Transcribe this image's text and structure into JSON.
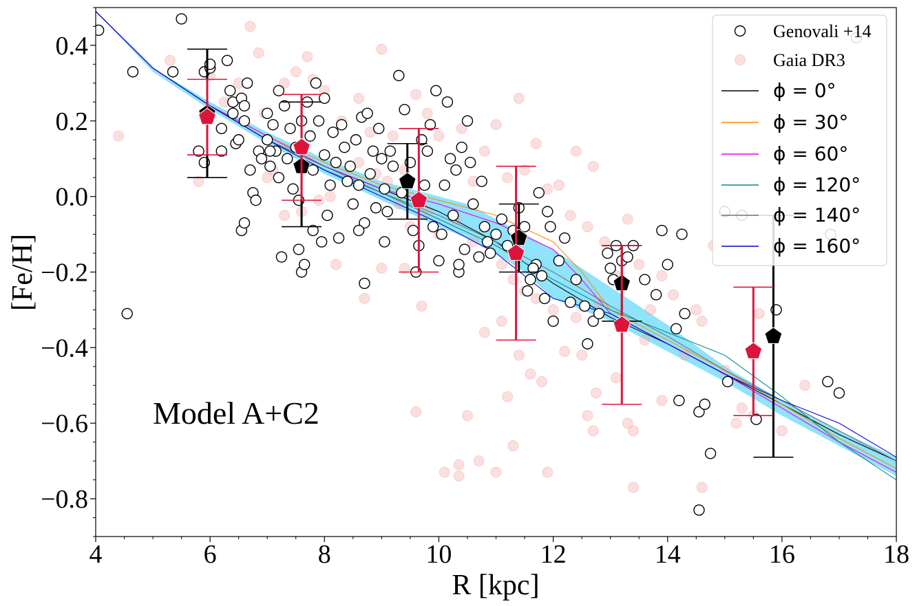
{
  "chart_data": {
    "type": "scatter",
    "xlabel": "R [kpc]",
    "ylabel": "[Fe/H]",
    "xlim": [
      4,
      18
    ],
    "ylim": [
      -0.9,
      0.5
    ],
    "xticks": [
      4,
      6,
      8,
      10,
      12,
      14,
      16,
      18
    ],
    "xtick_labels": [
      "4",
      "6",
      "8",
      "10",
      "12",
      "14",
      "16",
      "18"
    ],
    "yticks": [
      -0.8,
      -0.6,
      -0.4,
      -0.2,
      0.0,
      0.2,
      0.4
    ],
    "ytick_labels": [
      "−0.8",
      "−0.6",
      "−0.4",
      "−0.2",
      "0.0",
      "0.2",
      "0.4"
    ],
    "annotation": "Model A+C2",
    "legend_position": "top-right",
    "colors": {
      "gaia": "#f4a3a3",
      "gaia_bin": "#dc143c",
      "genovali_bin": "#000000",
      "band": "#33ccf5",
      "phi0": "#000000",
      "phi30": "#ff8c00",
      "phi60": "#ee00ee",
      "phi120": "#008b8b",
      "phi140": "#707070",
      "phi160": "#0000dd"
    },
    "legend": [
      {
        "key": "genovali",
        "label": "Genovali +14"
      },
      {
        "key": "gaia",
        "label": "Gaia DR3"
      },
      {
        "key": "phi0",
        "label": "ϕ = 0°"
      },
      {
        "key": "phi30",
        "label": "ϕ = 30°"
      },
      {
        "key": "phi60",
        "label": "ϕ = 60°"
      },
      {
        "key": "phi120",
        "label": "ϕ = 120°"
      },
      {
        "key": "phi140",
        "label": "ϕ = 140°"
      },
      {
        "key": "phi160",
        "label": "ϕ = 160°"
      }
    ],
    "genovali_binned": [
      {
        "x": 5.95,
        "y": 0.22,
        "err_lo": 0.05,
        "err_hi": 0.39
      },
      {
        "x": 7.6,
        "y": 0.08,
        "err_lo": -0.08,
        "err_hi": 0.25
      },
      {
        "x": 9.45,
        "y": 0.04,
        "err_lo": -0.06,
        "err_hi": 0.14
      },
      {
        "x": 11.4,
        "y": -0.11,
        "err_lo": -0.2,
        "err_hi": -0.02
      },
      {
        "x": 13.2,
        "y": -0.23,
        "err_lo": -0.33,
        "err_hi": -0.13
      },
      {
        "x": 15.85,
        "y": -0.37,
        "err_lo": -0.69,
        "err_hi": -0.05
      }
    ],
    "gaia_binned": [
      {
        "x": 5.95,
        "y": 0.21,
        "err_lo": 0.11,
        "err_hi": 0.31
      },
      {
        "x": 7.6,
        "y": 0.13,
        "err_lo": -0.01,
        "err_hi": 0.27
      },
      {
        "x": 9.65,
        "y": -0.01,
        "err_lo": -0.2,
        "err_hi": 0.18
      },
      {
        "x": 11.35,
        "y": -0.15,
        "err_lo": -0.38,
        "err_hi": 0.08
      },
      {
        "x": 13.2,
        "y": -0.34,
        "err_lo": -0.55,
        "err_hi": -0.13
      },
      {
        "x": 15.5,
        "y": -0.41,
        "err_lo": -0.58,
        "err_hi": -0.24
      }
    ],
    "band": {
      "x": [
        4,
        5,
        6,
        7,
        8,
        9,
        10,
        10.5,
        11,
        11.5,
        12,
        13,
        14,
        15,
        16,
        17,
        18
      ],
      "upper": [
        0.49,
        0.34,
        0.25,
        0.17,
        0.1,
        0.04,
        0.0,
        -0.02,
        -0.06,
        -0.1,
        -0.14,
        -0.24,
        -0.34,
        -0.45,
        -0.54,
        -0.62,
        -0.69
      ],
      "lower": [
        0.49,
        0.33,
        0.23,
        0.14,
        0.06,
        -0.01,
        -0.08,
        -0.11,
        -0.15,
        -0.2,
        -0.27,
        -0.33,
        -0.41,
        -0.49,
        -0.58,
        -0.66,
        -0.74
      ]
    },
    "series": [
      {
        "name": "phi0",
        "x": [
          4,
          5,
          6,
          7,
          8,
          9,
          10,
          11,
          12,
          13,
          14,
          15,
          16,
          17,
          18
        ],
        "y": [
          0.49,
          0.34,
          0.24,
          0.15,
          0.08,
          0.02,
          -0.04,
          -0.12,
          -0.23,
          -0.32,
          -0.39,
          -0.47,
          -0.55,
          -0.63,
          -0.7
        ]
      },
      {
        "name": "phi30",
        "x": [
          4,
          5,
          6,
          7,
          8,
          9,
          10,
          11,
          12,
          12.5,
          13,
          14,
          15,
          16,
          17,
          18
        ],
        "y": [
          0.49,
          0.34,
          0.24,
          0.16,
          0.09,
          0.03,
          -0.01,
          -0.05,
          -0.12,
          -0.2,
          -0.3,
          -0.38,
          -0.46,
          -0.55,
          -0.64,
          -0.72
        ]
      },
      {
        "name": "phi60",
        "x": [
          4,
          5,
          6,
          7,
          8,
          9,
          10,
          11,
          12,
          12.5,
          13,
          14,
          15,
          16,
          17,
          18
        ],
        "y": [
          0.49,
          0.34,
          0.24,
          0.16,
          0.08,
          0.02,
          -0.02,
          -0.07,
          -0.14,
          -0.22,
          -0.31,
          -0.39,
          -0.47,
          -0.56,
          -0.65,
          -0.73
        ]
      },
      {
        "name": "phi120",
        "x": [
          4,
          5,
          6,
          7,
          8,
          9,
          10,
          11,
          12,
          13,
          14,
          15,
          16,
          17,
          18
        ],
        "y": [
          0.49,
          0.34,
          0.24,
          0.15,
          0.07,
          0.01,
          -0.06,
          -0.13,
          -0.22,
          -0.3,
          -0.36,
          -0.42,
          -0.53,
          -0.65,
          -0.75
        ]
      },
      {
        "name": "phi140",
        "x": [
          4,
          5,
          6,
          7,
          8,
          9,
          10,
          11,
          12,
          13,
          14,
          15,
          16,
          17,
          18
        ],
        "y": [
          0.49,
          0.34,
          0.24,
          0.15,
          0.08,
          0.01,
          -0.05,
          -0.12,
          -0.2,
          -0.29,
          -0.37,
          -0.46,
          -0.54,
          -0.62,
          -0.7
        ]
      },
      {
        "name": "phi160",
        "x": [
          4,
          5,
          6,
          7,
          8,
          9,
          10,
          11,
          12,
          13,
          14,
          15,
          16,
          17,
          18
        ],
        "y": [
          0.49,
          0.34,
          0.24,
          0.15,
          0.07,
          0.0,
          -0.07,
          -0.15,
          -0.27,
          -0.31,
          -0.39,
          -0.47,
          -0.54,
          -0.6,
          -0.69
        ]
      }
    ],
    "genovali_points": [
      [
        4.05,
        0.44
      ],
      [
        4.65,
        0.33
      ],
      [
        5.35,
        0.33
      ],
      [
        5.5,
        0.47
      ],
      [
        5.8,
        0.12
      ],
      [
        5.9,
        0.33
      ],
      [
        6.0,
        0.34
      ],
      [
        6.0,
        0.35
      ],
      [
        6.2,
        0.18
      ],
      [
        6.2,
        0.12
      ],
      [
        6.3,
        0.36
      ],
      [
        6.35,
        0.28
      ],
      [
        6.4,
        0.25
      ],
      [
        6.4,
        0.22
      ],
      [
        6.45,
        0.14
      ],
      [
        6.5,
        0.15
      ],
      [
        6.55,
        0.26
      ],
      [
        6.6,
        0.24
      ],
      [
        6.6,
        0.2
      ],
      [
        6.65,
        0.3
      ],
      [
        6.7,
        0.07
      ],
      [
        6.75,
        0.01
      ],
      [
        6.8,
        -0.01
      ],
      [
        6.85,
        0.12
      ],
      [
        6.9,
        0.1
      ],
      [
        7.0,
        0.15
      ],
      [
        7.0,
        0.22
      ],
      [
        7.05,
        0.08
      ],
      [
        7.1,
        0.19
      ],
      [
        7.15,
        0.12
      ],
      [
        7.2,
        0.28
      ],
      [
        7.2,
        0.05
      ],
      [
        7.25,
        -0.16
      ],
      [
        7.3,
        0.24
      ],
      [
        7.35,
        0.1
      ],
      [
        7.4,
        0.18
      ],
      [
        7.45,
        0.02
      ],
      [
        7.5,
        0.13
      ],
      [
        7.55,
        -0.01
      ],
      [
        7.6,
        0.2
      ],
      [
        7.6,
        -0.2
      ],
      [
        7.65,
        -0.18
      ],
      [
        7.7,
        0.25
      ],
      [
        7.75,
        0.16
      ],
      [
        7.8,
        0.07
      ],
      [
        7.8,
        -0.09
      ],
      [
        7.85,
        0.3
      ],
      [
        7.9,
        0.2
      ],
      [
        7.95,
        -0.12
      ],
      [
        8.0,
        0.26
      ],
      [
        8.0,
        0.11
      ],
      [
        8.05,
        -0.05
      ],
      [
        8.1,
        0.03
      ],
      [
        8.15,
        0.17
      ],
      [
        8.2,
        0.09
      ],
      [
        8.25,
        -0.11
      ],
      [
        8.3,
        0.19
      ],
      [
        8.35,
        0.13
      ],
      [
        8.4,
        0.04
      ],
      [
        8.45,
        0.08
      ],
      [
        8.5,
        -0.02
      ],
      [
        8.55,
        0.15
      ],
      [
        8.6,
        0.03
      ],
      [
        8.65,
        0.21
      ],
      [
        8.7,
        -0.07
      ],
      [
        8.75,
        0.22
      ],
      [
        8.8,
        0.06
      ],
      [
        8.85,
        0.12
      ],
      [
        8.9,
        -0.03
      ],
      [
        8.95,
        0.18
      ],
      [
        9.0,
        0.1
      ],
      [
        9.05,
        0.02
      ],
      [
        9.1,
        -0.04
      ],
      [
        9.15,
        0.12
      ],
      [
        9.2,
        0.08
      ],
      [
        9.3,
        0.32
      ],
      [
        9.35,
        0.01
      ],
      [
        9.4,
        0.23
      ],
      [
        9.5,
        0.09
      ],
      [
        9.55,
        -0.09
      ],
      [
        9.6,
        -0.2
      ],
      [
        9.65,
        -0.13
      ],
      [
        9.7,
        0.15
      ],
      [
        9.75,
        0.03
      ],
      [
        9.8,
        0.12
      ],
      [
        9.85,
        0.19
      ],
      [
        9.9,
        -0.08
      ],
      [
        9.95,
        0.28
      ],
      [
        10.0,
        -0.17
      ],
      [
        10.05,
        -0.1
      ],
      [
        10.1,
        0.03
      ],
      [
        10.15,
        0.25
      ],
      [
        10.2,
        0.1
      ],
      [
        10.25,
        -0.05
      ],
      [
        10.3,
        0.07
      ],
      [
        10.35,
        -0.2
      ],
      [
        10.4,
        0.13
      ],
      [
        10.45,
        -0.14
      ],
      [
        10.5,
        0.2
      ],
      [
        10.55,
        0.09
      ],
      [
        10.6,
        -0.02
      ],
      [
        10.7,
        -0.16
      ],
      [
        10.75,
        0.04
      ],
      [
        10.8,
        -0.08
      ],
      [
        10.85,
        -0.12
      ],
      [
        10.9,
        -0.15
      ],
      [
        11.0,
        -0.1
      ],
      [
        11.1,
        -0.06
      ],
      [
        11.2,
        -0.13
      ],
      [
        11.3,
        -0.09
      ],
      [
        11.4,
        -0.03
      ],
      [
        11.5,
        -0.08
      ],
      [
        11.55,
        -0.25
      ],
      [
        11.6,
        -0.22
      ],
      [
        11.7,
        -0.18
      ],
      [
        11.75,
        0.01
      ],
      [
        11.8,
        -0.21
      ],
      [
        11.85,
        -0.27
      ],
      [
        11.9,
        -0.04
      ],
      [
        11.95,
        -0.08
      ],
      [
        12.0,
        -0.33
      ],
      [
        12.1,
        -0.17
      ],
      [
        12.2,
        -0.11
      ],
      [
        12.3,
        -0.28
      ],
      [
        12.4,
        -0.22
      ],
      [
        12.55,
        -0.29
      ],
      [
        12.6,
        -0.39
      ],
      [
        12.7,
        -0.33
      ],
      [
        12.8,
        -0.31
      ],
      [
        12.95,
        -0.15
      ],
      [
        13.0,
        -0.19
      ],
      [
        13.05,
        -0.22
      ],
      [
        13.1,
        -0.13
      ],
      [
        13.2,
        -0.17
      ],
      [
        13.3,
        -0.16
      ],
      [
        13.4,
        -0.13
      ],
      [
        13.6,
        -0.22
      ],
      [
        13.8,
        -0.26
      ],
      [
        13.9,
        -0.09
      ],
      [
        14.0,
        -0.18
      ],
      [
        14.15,
        -0.35
      ],
      [
        14.2,
        -0.54
      ],
      [
        14.25,
        -0.1
      ],
      [
        14.3,
        -0.31
      ],
      [
        14.55,
        -0.83
      ],
      [
        14.55,
        -0.57
      ],
      [
        14.65,
        -0.55
      ],
      [
        14.75,
        -0.68
      ],
      [
        15.0,
        -0.04
      ],
      [
        15.05,
        -0.49
      ],
      [
        15.3,
        -0.05
      ],
      [
        15.55,
        -0.59
      ],
      [
        15.9,
        -0.3
      ],
      [
        16.8,
        -0.49
      ],
      [
        16.85,
        -0.1
      ],
      [
        17.0,
        -0.52
      ],
      [
        17.3,
        0.42
      ],
      [
        4.55,
        -0.31
      ],
      [
        5.9,
        0.09
      ],
      [
        6.55,
        -0.09
      ],
      [
        6.6,
        -0.07
      ],
      [
        7.05,
        0.12
      ],
      [
        7.55,
        -0.14
      ],
      [
        8.6,
        -0.09
      ],
      [
        8.7,
        -0.23
      ],
      [
        9.05,
        -0.12
      ],
      [
        10.35,
        -0.18
      ],
      [
        11.65,
        -0.19
      ]
    ],
    "gaia_points": [
      [
        4.4,
        0.16
      ],
      [
        5.3,
        0.36
      ],
      [
        5.8,
        0.04
      ],
      [
        6.0,
        0.32
      ],
      [
        6.25,
        0.25
      ],
      [
        6.5,
        0.3
      ],
      [
        6.7,
        0.45
      ],
      [
        6.85,
        0.38
      ],
      [
        6.95,
        0.22
      ],
      [
        7.1,
        0.07
      ],
      [
        7.3,
        0.3
      ],
      [
        7.5,
        0.33
      ],
      [
        7.7,
        0.37
      ],
      [
        7.8,
        0.31
      ],
      [
        8.0,
        0.28
      ],
      [
        8.3,
        0.2
      ],
      [
        8.6,
        0.26
      ],
      [
        8.8,
        0.17
      ],
      [
        9.0,
        0.39
      ],
      [
        9.2,
        0.16
      ],
      [
        9.4,
        0.07
      ],
      [
        9.6,
        0.27
      ],
      [
        9.8,
        0.22
      ],
      [
        10.0,
        0.16
      ],
      [
        10.2,
        0.1
      ],
      [
        10.4,
        0.18
      ],
      [
        10.6,
        0.04
      ],
      [
        10.8,
        0.12
      ],
      [
        11.0,
        0.19
      ],
      [
        11.2,
        0.05
      ],
      [
        11.4,
        0.26
      ],
      [
        11.5,
        0.07
      ],
      [
        11.7,
        0.14
      ],
      [
        11.9,
        0.02
      ],
      [
        12.1,
        0.03
      ],
      [
        12.3,
        -0.05
      ],
      [
        12.4,
        0.12
      ],
      [
        12.6,
        -0.08
      ],
      [
        12.7,
        0.08
      ],
      [
        12.9,
        -0.12
      ],
      [
        13.1,
        -0.21
      ],
      [
        13.3,
        -0.06
      ],
      [
        13.5,
        -0.18
      ],
      [
        13.7,
        -0.3
      ],
      [
        13.9,
        -0.21
      ],
      [
        14.1,
        -0.26
      ],
      [
        14.3,
        -0.42
      ],
      [
        14.5,
        -0.3
      ],
      [
        14.6,
        -0.33
      ],
      [
        14.8,
        -0.13
      ],
      [
        15.0,
        -0.46
      ],
      [
        15.3,
        -0.56
      ],
      [
        15.5,
        -0.58
      ],
      [
        15.6,
        -0.31
      ],
      [
        16.0,
        -0.62
      ],
      [
        16.4,
        -0.5
      ],
      [
        8.2,
        -0.18
      ],
      [
        8.7,
        -0.27
      ],
      [
        9.0,
        -0.19
      ],
      [
        9.4,
        -0.19
      ],
      [
        9.6,
        -0.57
      ],
      [
        9.7,
        -0.29
      ],
      [
        10.1,
        -0.73
      ],
      [
        10.35,
        -0.71
      ],
      [
        10.35,
        -0.74
      ],
      [
        10.5,
        -0.58
      ],
      [
        10.7,
        -0.7
      ],
      [
        10.8,
        -0.36
      ],
      [
        11.0,
        -0.73
      ],
      [
        11.1,
        -0.33
      ],
      [
        11.2,
        -0.53
      ],
      [
        11.3,
        -0.66
      ],
      [
        11.4,
        -0.42
      ],
      [
        11.6,
        -0.47
      ],
      [
        11.8,
        -0.49
      ],
      [
        11.9,
        -0.73
      ],
      [
        12.2,
        -0.41
      ],
      [
        12.5,
        -0.42
      ],
      [
        12.6,
        -0.58
      ],
      [
        12.7,
        -0.62
      ],
      [
        12.75,
        -0.52
      ],
      [
        13.3,
        -0.6
      ],
      [
        13.4,
        -0.62
      ],
      [
        13.4,
        -0.77
      ],
      [
        13.9,
        -0.54
      ],
      [
        14.6,
        -0.77
      ],
      [
        15.2,
        -0.6
      ],
      [
        7.0,
        0.05
      ],
      [
        7.3,
        -0.05
      ],
      [
        7.6,
        -0.04
      ],
      [
        7.9,
        -0.01
      ],
      [
        8.1,
        0.0
      ],
      [
        8.4,
        0.04
      ],
      [
        8.6,
        0.09
      ],
      [
        8.9,
        0.06
      ],
      [
        9.1,
        0.04
      ],
      [
        9.3,
        -0.02
      ],
      [
        9.5,
        -0.08
      ],
      [
        9.8,
        -0.04
      ],
      [
        10.0,
        -0.1
      ],
      [
        10.3,
        -0.06
      ],
      [
        10.6,
        -0.12
      ],
      [
        10.9,
        -0.15
      ],
      [
        11.1,
        -0.18
      ],
      [
        11.3,
        -0.22
      ],
      [
        11.5,
        -0.25
      ],
      [
        11.7,
        -0.27
      ],
      [
        12.0,
        -0.3
      ],
      [
        12.4,
        -0.32
      ],
      [
        12.8,
        -0.28
      ],
      [
        13.1,
        -0.48
      ],
      [
        13.6,
        -0.38
      ]
    ]
  }
}
